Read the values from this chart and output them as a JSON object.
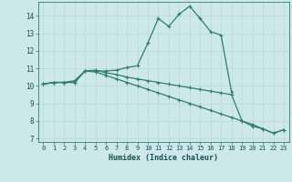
{
  "xlabel": "Humidex (Indice chaleur)",
  "background_color": "#cce8e8",
  "line_color": "#2e7d6e",
  "xlim": [
    -0.5,
    23.5
  ],
  "ylim": [
    6.8,
    14.8
  ],
  "yticks": [
    7,
    8,
    9,
    10,
    11,
    12,
    13,
    14
  ],
  "xticks": [
    0,
    1,
    2,
    3,
    4,
    5,
    6,
    7,
    8,
    9,
    10,
    11,
    12,
    13,
    14,
    15,
    16,
    17,
    18,
    19,
    20,
    21,
    22,
    23
  ],
  "series": [
    {
      "x": [
        0,
        1,
        2,
        3,
        4,
        5,
        6,
        7,
        8,
        9,
        10,
        11,
        12,
        13,
        14,
        15,
        16,
        17,
        18
      ],
      "y": [
        10.1,
        10.2,
        10.2,
        10.2,
        10.85,
        10.85,
        10.85,
        10.9,
        11.05,
        11.15,
        12.45,
        13.85,
        13.4,
        14.1,
        14.55,
        13.85,
        13.1,
        12.9,
        9.65
      ]
    },
    {
      "x": [
        0,
        1,
        2,
        3,
        4,
        5,
        6,
        7,
        8,
        9,
        10,
        11,
        12,
        13,
        14,
        15,
        16,
        17,
        18,
        19,
        20,
        21,
        22,
        23
      ],
      "y": [
        10.1,
        10.2,
        10.2,
        10.2,
        10.85,
        10.9,
        10.75,
        10.65,
        10.5,
        10.4,
        10.3,
        10.2,
        10.1,
        10.0,
        9.9,
        9.8,
        9.7,
        9.6,
        9.5,
        8.0,
        7.7,
        7.55,
        7.3,
        7.5
      ]
    },
    {
      "x": [
        0,
        1,
        2,
        3,
        4,
        5,
        6,
        7,
        8,
        9,
        10,
        11,
        12,
        13,
        14,
        15,
        16,
        17,
        18,
        19,
        20,
        21,
        22,
        23
      ],
      "y": [
        10.1,
        10.2,
        10.2,
        10.3,
        10.85,
        10.8,
        10.6,
        10.4,
        10.2,
        10.0,
        9.8,
        9.6,
        9.4,
        9.2,
        9.0,
        8.8,
        8.6,
        8.4,
        8.2,
        8.0,
        7.8,
        7.55,
        7.3,
        7.5
      ]
    }
  ]
}
